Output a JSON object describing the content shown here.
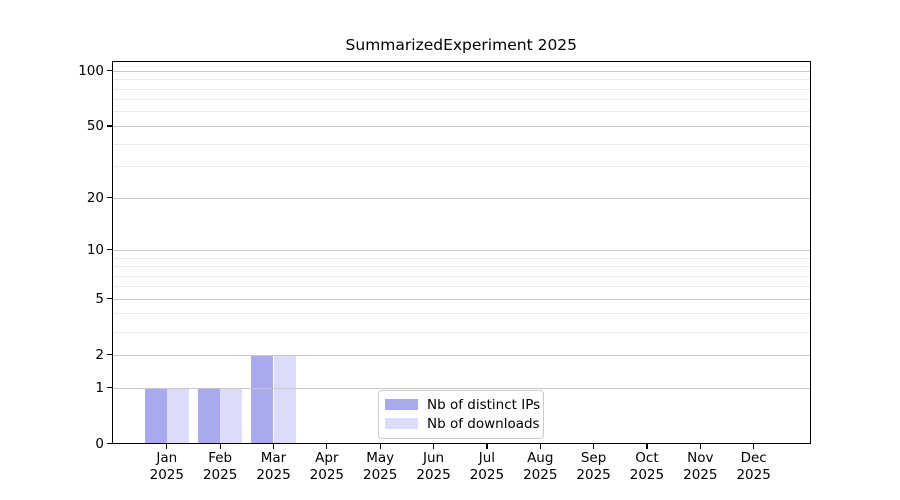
{
  "title": "SummarizedExperiment 2025",
  "chart_data": {
    "type": "bar",
    "title": "SummarizedExperiment 2025",
    "categories": [
      "Jan 2025",
      "Feb 2025",
      "Mar 2025",
      "Apr 2025",
      "May 2025",
      "Jun 2025",
      "Jul 2025",
      "Aug 2025",
      "Sep 2025",
      "Oct 2025",
      "Nov 2025",
      "Dec 2025"
    ],
    "series": [
      {
        "name": "Nb of distinct IPs",
        "color": "#a9a9ef",
        "values": [
          1,
          1,
          2,
          0,
          0,
          0,
          0,
          0,
          0,
          0,
          0,
          0
        ]
      },
      {
        "name": "Nb of downloads",
        "color": "#dcdcf8",
        "values": [
          1,
          1,
          2,
          0,
          0,
          0,
          0,
          0,
          0,
          0,
          0,
          0
        ]
      }
    ],
    "xlabel": "",
    "ylabel": "",
    "y_axis": {
      "scale": "log10(value+1)",
      "tick_values": [
        0,
        1,
        2,
        5,
        10,
        20,
        50,
        100
      ],
      "tick_labels": [
        "0",
        "1",
        "2",
        "5",
        "10",
        "20",
        "50",
        "100"
      ],
      "major_gridlines": [
        1,
        2,
        5,
        10,
        20,
        50,
        100
      ],
      "minor_gridlines": [
        3,
        4,
        6,
        7,
        8,
        9,
        30,
        40,
        60,
        70,
        80,
        90
      ],
      "range": [
        0,
        110
      ]
    },
    "grid": "horizontal, drawn over bars",
    "legend_position": "inside bottom-center",
    "colors": {
      "grid_major": "#c8c8c8",
      "grid_minor": "#eaeaea",
      "axis": "#000000",
      "text": "#000000",
      "background": "#ffffff",
      "legend_border": "#cccccc"
    }
  }
}
